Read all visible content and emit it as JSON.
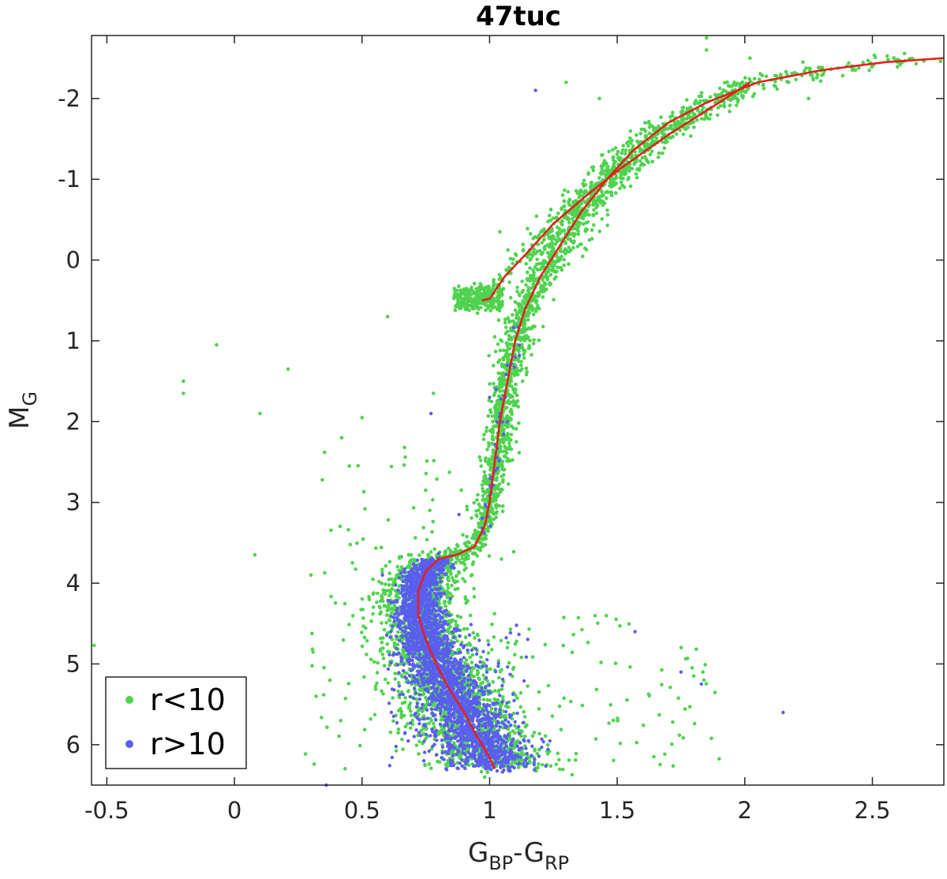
{
  "chart_data": {
    "type": "scatter",
    "title": "47tuc",
    "xlabel": "G_BP-G_RP",
    "xlabel_main": "G",
    "xlabel_sub1": "BP",
    "xlabel_sep": "-G",
    "xlabel_sub2": "RP",
    "ylabel_main": "M",
    "ylabel_sub": "G",
    "xlim": [
      -0.56,
      2.78
    ],
    "ylim": [
      6.5,
      -2.78
    ],
    "y_reversed": true,
    "xticks": [
      -0.5,
      0,
      0.5,
      1,
      1.5,
      2,
      2.5
    ],
    "xtick_labels": [
      "-0.5",
      "0",
      "0.5",
      "1",
      "1.5",
      "2",
      "2.5"
    ],
    "yticks": [
      -2,
      -1,
      0,
      1,
      2,
      3,
      4,
      5,
      6
    ],
    "ytick_labels": [
      "-2",
      "-1",
      "0",
      "1",
      "2",
      "3",
      "4",
      "5",
      "6"
    ],
    "grid": false,
    "legend_position": "bottom-left",
    "colors": {
      "green": "#4fd34f",
      "blue": "#5a5ef0",
      "red": "#e81e1e"
    },
    "series": [
      {
        "name": "r<10",
        "kind": "points",
        "color": "#4fd34f",
        "fiducial_ridge": [
          [
            1.02,
            6.3
          ],
          [
            0.99,
            6.1
          ],
          [
            0.95,
            5.9
          ],
          [
            0.9,
            5.6
          ],
          [
            0.84,
            5.3
          ],
          [
            0.79,
            5.0
          ],
          [
            0.75,
            4.7
          ],
          [
            0.72,
            4.4
          ],
          [
            0.72,
            4.1
          ],
          [
            0.75,
            3.85
          ],
          [
            0.8,
            3.7
          ],
          [
            0.87,
            3.65
          ],
          [
            0.94,
            3.55
          ],
          [
            0.98,
            3.3
          ],
          [
            1.0,
            3.0
          ],
          [
            1.02,
            2.5
          ],
          [
            1.04,
            2.0
          ],
          [
            1.07,
            1.5
          ],
          [
            1.1,
            1.0
          ],
          [
            1.14,
            0.6
          ],
          [
            1.2,
            0.2
          ],
          [
            1.28,
            -0.2
          ],
          [
            1.36,
            -0.6
          ],
          [
            1.46,
            -1.0
          ],
          [
            1.56,
            -1.35
          ],
          [
            1.7,
            -1.7
          ],
          [
            1.85,
            -1.95
          ],
          [
            2.05,
            -2.2
          ],
          [
            2.3,
            -2.35
          ],
          [
            2.55,
            -2.45
          ],
          [
            2.78,
            -2.5
          ]
        ],
        "agb_ridge": [
          [
            1.0,
            0.5
          ],
          [
            1.06,
            0.2
          ],
          [
            1.15,
            -0.1
          ],
          [
            1.25,
            -0.45
          ],
          [
            1.38,
            -0.8
          ],
          [
            1.52,
            -1.15
          ],
          [
            1.7,
            -1.55
          ],
          [
            1.9,
            -1.95
          ],
          [
            2.02,
            -2.2
          ]
        ],
        "horizontal_branch": {
          "x": [
            0.86,
            1.05
          ],
          "y": [
            0.35,
            0.6
          ]
        },
        "outliers": [
          [
            -0.2,
            1.5
          ],
          [
            -0.2,
            1.65
          ],
          [
            -0.07,
            1.05
          ],
          [
            0.1,
            1.9
          ],
          [
            0.21,
            1.35
          ],
          [
            0.3,
            3.9
          ],
          [
            0.32,
            5.4
          ],
          [
            0.08,
            3.65
          ],
          [
            0.42,
            2.2
          ],
          [
            0.45,
            2.55
          ],
          [
            0.5,
            1.95
          ],
          [
            0.6,
            0.7
          ],
          [
            0.78,
            1.65
          ],
          [
            1.02,
            0.95
          ],
          [
            1.04,
            -0.35
          ],
          [
            1.8,
            5.15
          ],
          [
            1.85,
            -2.75
          ],
          [
            1.84,
            5.2
          ],
          [
            1.85,
            -2.6
          ],
          [
            2.02,
            -2.5
          ],
          [
            2.25,
            -2.0
          ],
          [
            -0.55,
            4.77
          ],
          [
            1.43,
            -2.0
          ],
          [
            1.3,
            -2.2
          ],
          [
            2.4,
            -2.4
          ]
        ]
      },
      {
        "name": "r>10",
        "kind": "points",
        "color": "#5a5ef0",
        "dense_region": {
          "y_range": [
            3.7,
            6.3
          ]
        },
        "outliers": [
          [
            0.77,
            1.9
          ],
          [
            0.88,
            3.15
          ],
          [
            1.0,
            1.7
          ],
          [
            1.1,
            1.2
          ],
          [
            1.57,
            4.6
          ],
          [
            1.75,
            5.1
          ],
          [
            1.83,
            5.25
          ],
          [
            2.15,
            5.6
          ],
          [
            0.36,
            6.5
          ],
          [
            1.18,
            -2.1
          ],
          [
            0.58,
            3.9
          ]
        ]
      },
      {
        "name": "",
        "kind": "line",
        "color": "#e81e1e",
        "fiducial_x": [
          1.02,
          0.99,
          0.95,
          0.9,
          0.84,
          0.79,
          0.75,
          0.72,
          0.72,
          0.75,
          0.8,
          0.87,
          0.94,
          0.98,
          1.0,
          1.02,
          1.04,
          1.07,
          1.1,
          1.14,
          1.2,
          1.28,
          1.36,
          1.46,
          1.56,
          1.7,
          1.85,
          2.05,
          2.3,
          2.55,
          2.78
        ],
        "fiducial_y": [
          6.3,
          6.1,
          5.9,
          5.6,
          5.3,
          5.0,
          4.7,
          4.4,
          4.1,
          3.85,
          3.7,
          3.65,
          3.55,
          3.3,
          3.0,
          2.5,
          2.0,
          1.5,
          1.0,
          0.6,
          0.2,
          -0.2,
          -0.6,
          -1.0,
          -1.35,
          -1.7,
          -1.95,
          -2.2,
          -2.35,
          -2.45,
          -2.5
        ],
        "agb_x": [
          0.97,
          1.0,
          1.06,
          1.15,
          1.25,
          1.38,
          1.52,
          1.7,
          1.9,
          2.02
        ],
        "agb_y": [
          0.5,
          0.48,
          0.2,
          -0.1,
          -0.45,
          -0.8,
          -1.15,
          -1.55,
          -1.95,
          -2.2
        ]
      }
    ],
    "legend": [
      {
        "label": "r<10",
        "color": "#4fd34f"
      },
      {
        "label": "r>10",
        "color": "#5a5ef0"
      }
    ]
  }
}
